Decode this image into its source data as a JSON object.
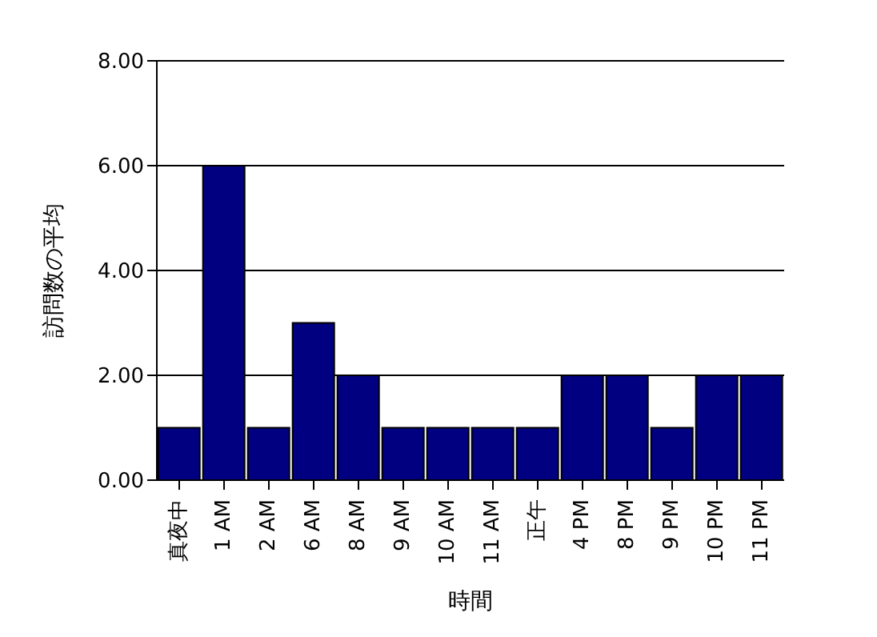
{
  "chart_data": {
    "type": "bar",
    "xlabel": "時間",
    "ylabel": "訪問数の平均",
    "categories": [
      "真夜中",
      "1 AM",
      "2 AM",
      "6 AM",
      "8 AM",
      "9 AM",
      "10 AM",
      "11 AM",
      "正午",
      "4 PM",
      "8 PM",
      "9 PM",
      "10 PM",
      "11 PM"
    ],
    "values": [
      1,
      6,
      1,
      3,
      2,
      1,
      1,
      1,
      1,
      2,
      2,
      1,
      2,
      2
    ],
    "color": "#000080",
    "ylim": [
      0,
      8
    ],
    "yticks": [
      {
        "value": 0,
        "label": "0.00"
      },
      {
        "value": 2,
        "label": "2.00"
      },
      {
        "value": 4,
        "label": "4.00"
      },
      {
        "value": 6,
        "label": "6.00"
      },
      {
        "value": 8,
        "label": "8.00"
      }
    ],
    "grid": "y",
    "legend": false
  }
}
